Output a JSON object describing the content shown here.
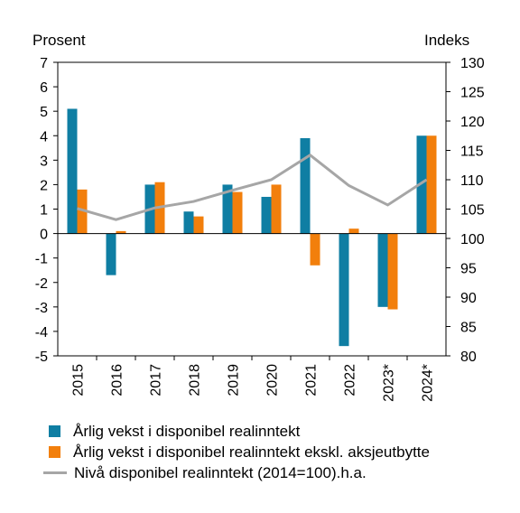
{
  "chart_data": {
    "type": "bar+line",
    "categories": [
      "2015",
      "2016",
      "2017",
      "2018",
      "2019",
      "2020",
      "2021",
      "2022",
      "2023*",
      "2024*"
    ],
    "left_axis": {
      "label": "Prosent",
      "ylim": [
        -5,
        7
      ],
      "ticks": [
        7,
        6,
        5,
        4,
        3,
        2,
        1,
        0,
        -1,
        -2,
        -3,
        -4,
        -5
      ]
    },
    "right_axis": {
      "label": "Indeks",
      "ylim": [
        80,
        130
      ],
      "ticks": [
        130,
        125,
        120,
        115,
        110,
        105,
        100,
        95,
        90,
        85,
        80
      ]
    },
    "series": [
      {
        "name": "Årlig vekst i disponibel realinntekt",
        "kind": "bar",
        "axis": "left",
        "color": "#0f7ea3",
        "values": [
          5.1,
          -1.7,
          2.0,
          0.9,
          2.0,
          1.5,
          3.9,
          -4.6,
          -3.0,
          4.0
        ]
      },
      {
        "name": "Årlig vekst i disponibel realinntekt ekskl. aksjeutbytte",
        "kind": "bar",
        "axis": "left",
        "color": "#f27f0c",
        "values": [
          1.8,
          0.1,
          2.1,
          0.7,
          1.7,
          2.0,
          -1.3,
          0.2,
          -3.1,
          4.0
        ]
      },
      {
        "name": "Nivå disponibel realinntekt (2014=100).h.a.",
        "kind": "line",
        "axis": "right",
        "color": "#a6a6a6",
        "values": [
          105.1,
          103.2,
          105.2,
          106.3,
          108.2,
          110.0,
          114.2,
          109.0,
          105.7,
          110.0
        ]
      }
    ],
    "legend_position": "bottom",
    "grid": false
  }
}
